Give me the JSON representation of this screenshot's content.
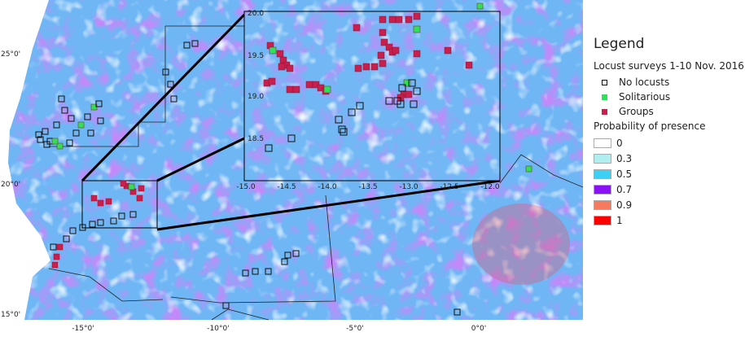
{
  "legend": {
    "title": "Legend",
    "surveys_title": "Locust surveys 1-10 Nov. 2016",
    "markers": [
      {
        "label": "No locusts",
        "color": "#ffffff",
        "stroke": "#111111"
      },
      {
        "label": "Solitarious",
        "color": "#2ee05a",
        "stroke": "#2ee05a"
      },
      {
        "label": "Groups",
        "color": "#c8204e",
        "stroke": "#c8204e"
      }
    ],
    "probability_title": "Probability of presence",
    "classes": [
      {
        "label": "0",
        "color": "#ffffff"
      },
      {
        "label": "0.3",
        "color": "#b0eef0"
      },
      {
        "label": "0.5",
        "color": "#3cd0f5"
      },
      {
        "label": "0.7",
        "color": "#8a10f5"
      },
      {
        "label": "0.9",
        "color": "#f57a60"
      },
      {
        "label": "1",
        "color": "#ff0000"
      }
    ]
  },
  "map": {
    "lat_labels": [
      "25°0'",
      "20°0'",
      "15°0'"
    ],
    "lon_labels": [
      "-15°0'",
      "-10°0'",
      "-5°0'",
      "0°0'"
    ],
    "inset_lat_labels": [
      "20.0",
      "19.5",
      "19.0",
      "18.5"
    ],
    "inset_lon_labels": [
      "-15.0",
      "-14.5",
      "-14.0",
      "-13.5",
      "-13.0",
      "-12.5",
      "-12.0"
    ]
  }
}
